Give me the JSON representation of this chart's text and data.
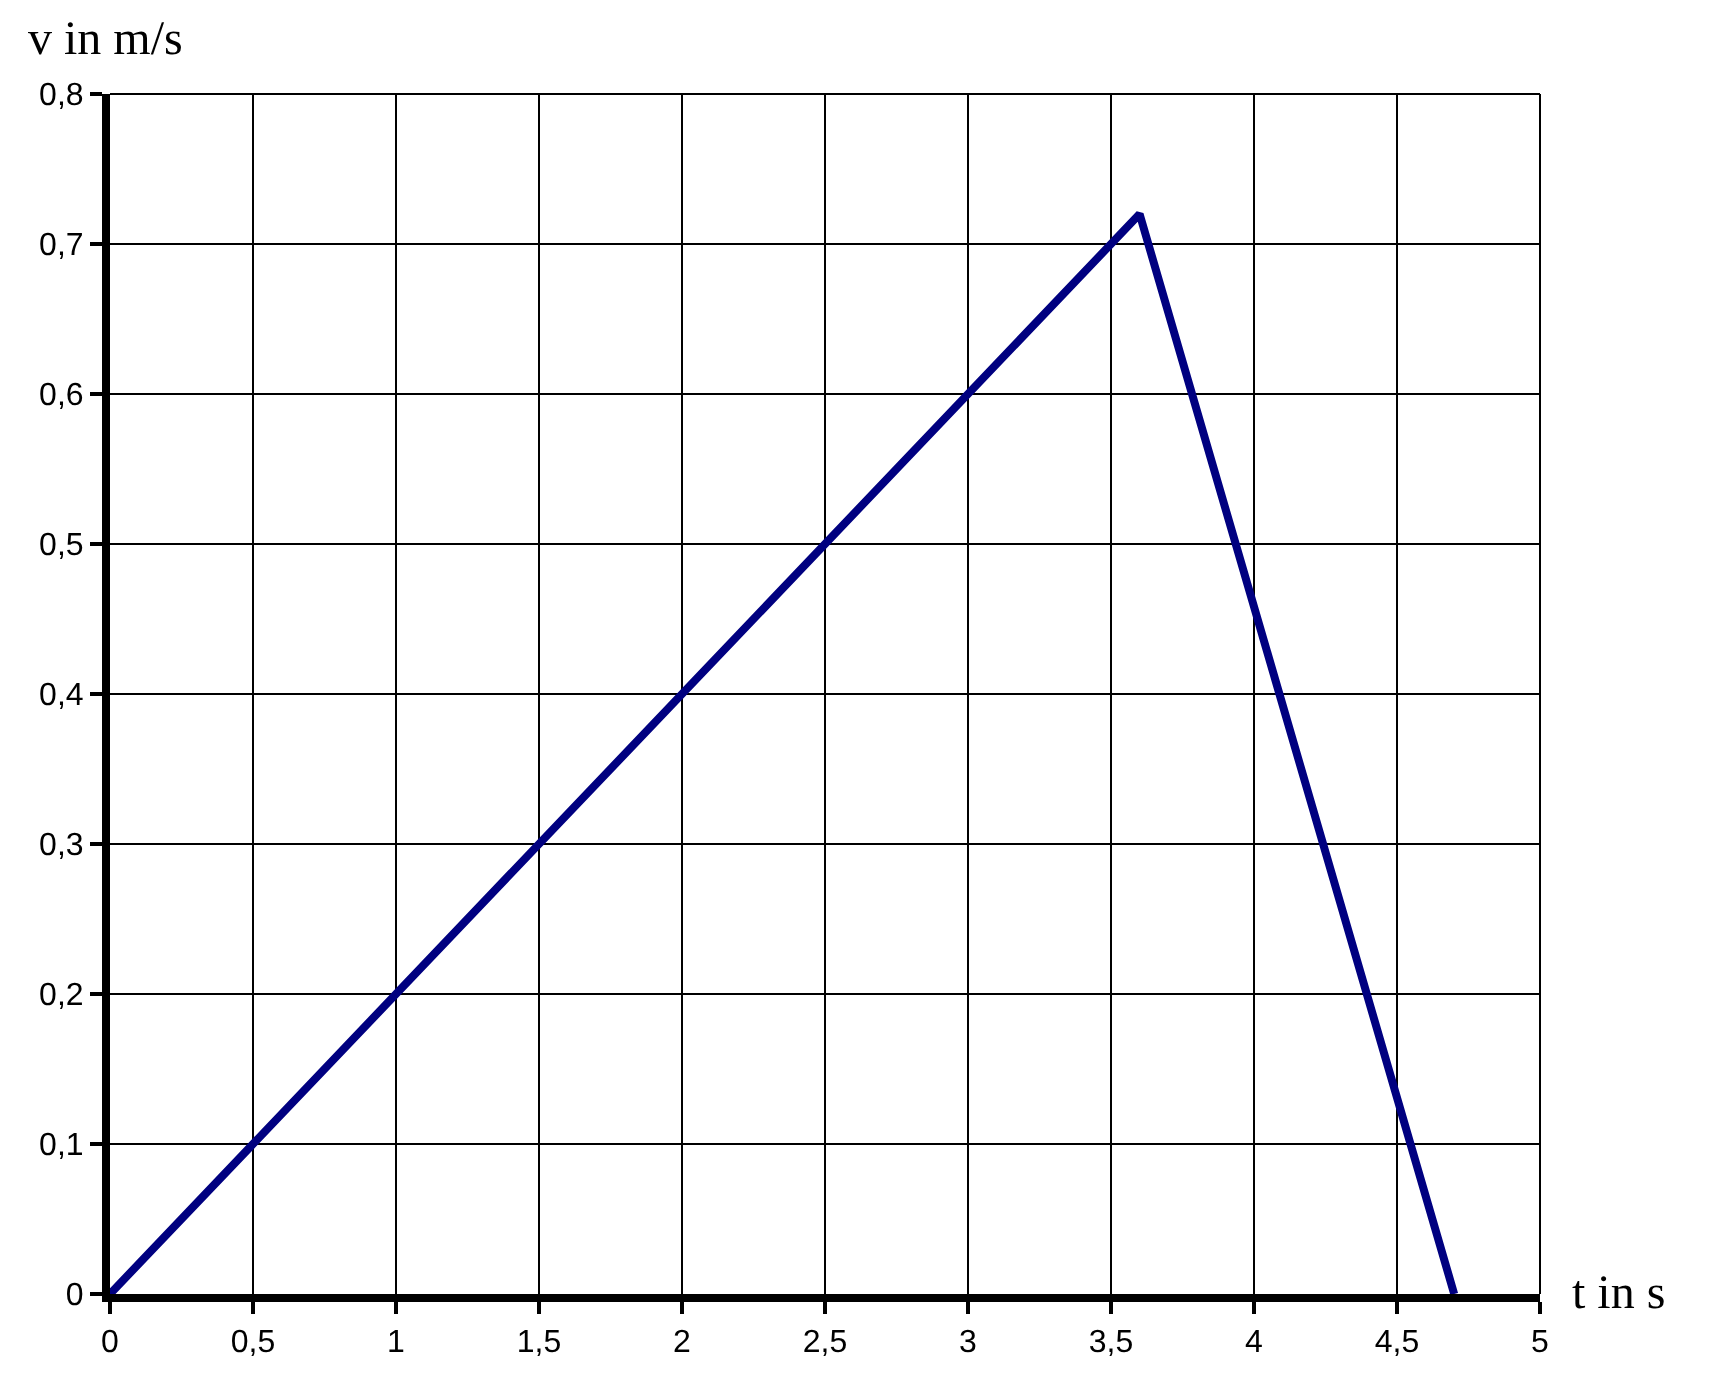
{
  "chart_data": {
    "type": "line",
    "xlabel": "t in s",
    "ylabel": "v in m/s",
    "x": [
      0,
      3.6,
      4.7
    ],
    "series": [
      {
        "color": "#000080",
        "values": [
          0,
          0.72,
          0
        ]
      }
    ],
    "xlim": [
      0,
      5
    ],
    "ylim": [
      0,
      0.8
    ],
    "xticks": [
      0,
      {
        "value": 0.5,
        "label": "0,5"
      },
      1,
      {
        "value": 1.5,
        "label": "1,5"
      },
      2,
      {
        "value": 2.5,
        "label": "2,5"
      },
      3,
      {
        "value": 3.5,
        "label": "3,5"
      },
      4,
      {
        "value": 4.5,
        "label": "4,5"
      },
      5
    ],
    "yticks": [
      0,
      {
        "value": 0.1,
        "label": "0,1"
      },
      {
        "value": 0.2,
        "label": "0,2"
      },
      {
        "value": 0.3,
        "label": "0,3"
      },
      {
        "value": 0.4,
        "label": "0,4"
      },
      {
        "value": 0.5,
        "label": "0,5"
      },
      {
        "value": 0.6,
        "label": "0,6"
      },
      {
        "value": 0.7,
        "label": "0,7"
      },
      {
        "value": 0.8,
        "label": "0,8"
      }
    ],
    "grid": true,
    "marker": "none",
    "line_style": "solid"
  }
}
